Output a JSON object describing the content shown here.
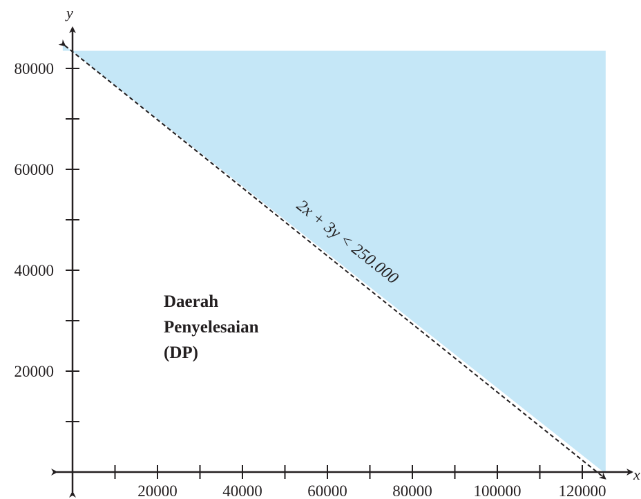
{
  "chart_data": {
    "type": "area",
    "xlabel": "x",
    "ylabel": "y",
    "xlim": [
      0,
      126000
    ],
    "ylim": [
      0,
      83500
    ],
    "x_tick_labels": [
      20000,
      40000,
      60000,
      80000,
      100000,
      120000
    ],
    "x_ticks": [
      10000,
      20000,
      30000,
      40000,
      50000,
      60000,
      70000,
      80000,
      90000,
      100000,
      110000,
      120000
    ],
    "y_tick_labels": [
      20000,
      40000,
      60000,
      80000
    ],
    "y_ticks": [
      10000,
      20000,
      30000,
      40000,
      50000,
      60000,
      70000,
      80000
    ],
    "boundary": {
      "label": "2x + 3y < 250.000",
      "style": "dashed",
      "points": [
        [
          0,
          83333
        ],
        [
          125000,
          0
        ]
      ]
    },
    "shaded_region": {
      "color": "#c5e7f7",
      "description_side": "above"
    },
    "region_label_lines": [
      "Daerah",
      "Penyelesaian",
      "(DP)"
    ],
    "grid": false
  }
}
